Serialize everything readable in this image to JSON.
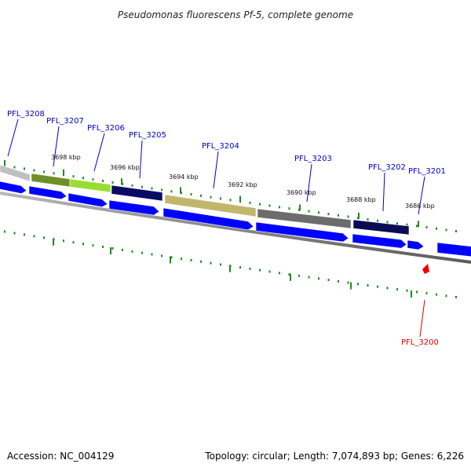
{
  "title": "Pseudomonas fluorescens Pf-5, complete genome",
  "footer": {
    "accession": "Accession: NC_004129",
    "summary": "Topology: circular; Length: 7,074,893 bp; Genes: 6,226"
  },
  "colors": {
    "background": "#ffffff",
    "tick_green": "#1e8a1e",
    "label_blue": "#0000cc",
    "label_red": "#dd0000",
    "arrow_blue": "#0000ff",
    "backbone_gray": "#7a7a7a"
  },
  "scale_labels": [
    "3698 kbp",
    "3696 kbp",
    "3694 kbp",
    "3692 kbp",
    "3690 kbp",
    "3688 kbp",
    "3686 kbp"
  ],
  "gene_labels": [
    {
      "id": "PFL_3208",
      "color": "blue"
    },
    {
      "id": "PFL_3207",
      "color": "blue"
    },
    {
      "id": "PFL_3206",
      "color": "blue"
    },
    {
      "id": "PFL_3205",
      "color": "blue"
    },
    {
      "id": "PFL_3204",
      "color": "blue"
    },
    {
      "id": "PFL_3203",
      "color": "blue"
    },
    {
      "id": "PFL_3202",
      "color": "blue"
    },
    {
      "id": "PFL_3201",
      "color": "blue"
    },
    {
      "id": "PFL_3200",
      "color": "red"
    }
  ],
  "cog_blocks": [
    {
      "name": "light-gray",
      "color": "#c0c0c0"
    },
    {
      "name": "olive-green",
      "color": "#6f8f28"
    },
    {
      "name": "lime-green",
      "color": "#99dd33"
    },
    {
      "name": "navy",
      "color": "#0b0b66"
    },
    {
      "name": "khaki",
      "color": "#c2b66a"
    },
    {
      "name": "gray",
      "color": "#6c6c6c"
    },
    {
      "name": "dark-navy",
      "color": "#0b0b55"
    }
  ]
}
